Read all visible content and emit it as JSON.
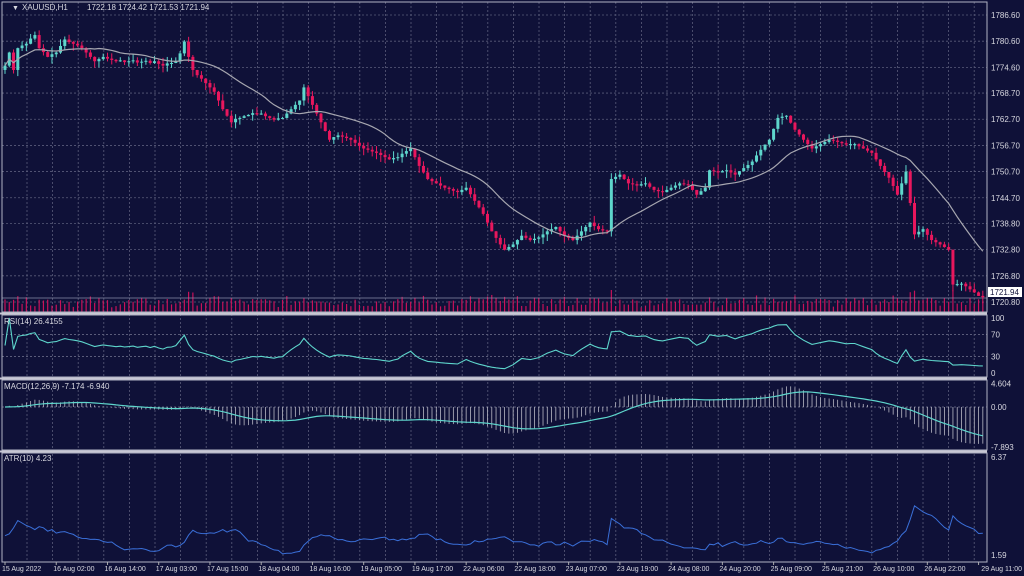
{
  "chart_data": [
    {
      "type": "candlestick",
      "symbol_label": "XAUUSD,H1",
      "ohlc_label": "1722.18 1724.42 1721.53 1721.94",
      "last_price": "1721.94",
      "price_ticks": [
        "1786.60",
        "1780.60",
        "1774.60",
        "1768.70",
        "1762.70",
        "1756.70",
        "1750.70",
        "1744.70",
        "1738.80",
        "1732.80",
        "1726.80",
        "1720.80"
      ],
      "ylim": [
        1720.8,
        1786.6
      ],
      "time_labels": [
        "15 Aug 2022",
        "16 Aug 02:00",
        "16 Aug 14:00",
        "17 Aug 03:00",
        "17 Aug 15:00",
        "18 Aug 04:00",
        "18 Aug 16:00",
        "19 Aug 05:00",
        "19 Aug 17:00",
        "22 Aug 06:00",
        "22 Aug 18:00",
        "23 Aug 07:00",
        "23 Aug 19:00",
        "24 Aug 08:00",
        "24 Aug 20:00",
        "25 Aug 09:00",
        "25 Aug 21:00",
        "26 Aug 10:00",
        "26 Aug 22:00",
        "29 Aug 11:00"
      ],
      "grid": true,
      "colors": {
        "background": "#0f1138",
        "bull": "#5ed6cc",
        "bear": "#e8175d",
        "ma": "#a7a7b0",
        "grid": "#5a5c7a",
        "volume": "#c8125a"
      },
      "closes": [
        1775.0,
        1778.0,
        1774.0,
        1779.0,
        1779.6,
        1780.0,
        1781.2,
        1782.0,
        1779.0,
        1778.1,
        1777.0,
        1777.6,
        1778.0,
        1779.5,
        1781.0,
        1780.4,
        1780.0,
        1779.6,
        1779.0,
        1778.0,
        1777.0,
        1776.0,
        1776.5,
        1777.0,
        1776.6,
        1776.3,
        1776.0,
        1776.2,
        1775.8,
        1776.0,
        1776.2,
        1775.7,
        1775.9,
        1776.1,
        1775.6,
        1776.0,
        1775.4,
        1775.0,
        1775.5,
        1775.6,
        1776.0,
        1777.8,
        1780.5,
        1777.0,
        1774.0,
        1772.8,
        1772.0,
        1771.0,
        1770.0,
        1769.0,
        1767.0,
        1765.0,
        1763.5,
        1762.0,
        1762.8,
        1763.0,
        1763.4,
        1763.7,
        1764.1,
        1763.8,
        1764.0,
        1763.4,
        1763.0,
        1762.6,
        1762.9,
        1763.0,
        1764.0,
        1765.0,
        1766.0,
        1767.0,
        1770.0,
        1768.0,
        1766.0,
        1764.0,
        1762.0,
        1760.0,
        1758.0,
        1758.6,
        1759.0,
        1758.7,
        1758.4,
        1758.0,
        1757.3,
        1756.6,
        1756.0,
        1755.7,
        1755.3,
        1755.0,
        1754.5,
        1754.0,
        1753.5,
        1753.8,
        1754.0,
        1754.8,
        1755.4,
        1756.0,
        1754.0,
        1752.0,
        1750.5,
        1749.0,
        1748.5,
        1748.0,
        1747.5,
        1747.0,
        1746.7,
        1746.3,
        1746.0,
        1746.5,
        1747.0,
        1745.5,
        1744.0,
        1742.5,
        1741.0,
        1739.0,
        1737.0,
        1735.5,
        1734.0,
        1732.8,
        1733.4,
        1734.0,
        1735.0,
        1736.0,
        1735.5,
        1735.0,
        1735.3,
        1735.6,
        1736.3,
        1737.0,
        1737.5,
        1738.0,
        1737.0,
        1736.0,
        1735.5,
        1735.0,
        1736.0,
        1737.0,
        1738.0,
        1739.0,
        1738.2,
        1737.5,
        1737.2,
        1737.0,
        1749.0,
        1749.5,
        1750.0,
        1749.0,
        1748.0,
        1747.8,
        1747.5,
        1747.8,
        1748.0,
        1747.2,
        1746.5,
        1746.2,
        1746.0,
        1746.5,
        1747.0,
        1747.5,
        1748.0,
        1747.8,
        1747.7,
        1746.5,
        1745.4,
        1746.2,
        1747.0,
        1751.0,
        1750.8,
        1750.5,
        1750.8,
        1751.0,
        1750.5,
        1750.0,
        1750.8,
        1751.5,
        1752.2,
        1753.0,
        1754.4,
        1755.7,
        1756.9,
        1758.0,
        1760.5,
        1763.0,
        1763.3,
        1763.5,
        1761.9,
        1760.3,
        1759.2,
        1758.0,
        1757.0,
        1756.0,
        1756.5,
        1757.0,
        1757.5,
        1758.0,
        1757.8,
        1757.5,
        1757.2,
        1756.9,
        1757.0,
        1757.0,
        1756.5,
        1756.0,
        1755.5,
        1755.0,
        1753.5,
        1752.0,
        1750.6,
        1749.3,
        1747.4,
        1745.4,
        1748.0,
        1750.7,
        1743.5,
        1736.3,
        1736.9,
        1737.5,
        1736.2,
        1735.0,
        1734.5,
        1734.0,
        1733.4,
        1732.8,
        1724.8,
        1724.9,
        1725.0,
        1724.4,
        1723.7,
        1723.0,
        1722.2,
        1721.9
      ]
    },
    {
      "type": "line",
      "label": "RSI(14) 26.4155",
      "ticks": [
        "100",
        "70",
        "30",
        "0"
      ],
      "ylim": [
        0,
        100
      ],
      "color": "#5ed6cc"
    },
    {
      "type": "bar+line",
      "label": "MACD(12,26,9) -7.174 -6.940",
      "ticks": [
        "4.604",
        "0.00",
        "-7.893"
      ],
      "ylim": [
        -7.893,
        4.604
      ],
      "colors": {
        "histogram": "#b8b8c4",
        "signal": "#5ed6cc"
      }
    },
    {
      "type": "line",
      "label": "ATR(10) 4.23",
      "ticks": [
        "6.37",
        "1.59"
      ],
      "ylim": [
        1.59,
        6.37
      ],
      "color": "#3a6fd8"
    }
  ]
}
